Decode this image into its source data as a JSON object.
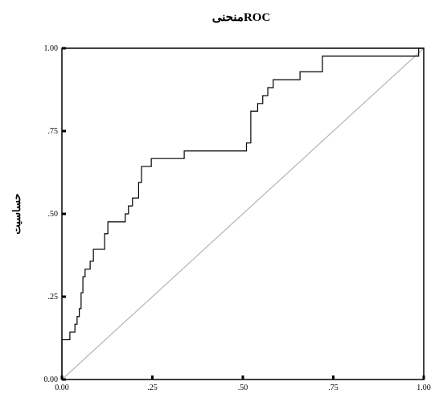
{
  "chart_data": {
    "type": "line",
    "title": "منحنیROC",
    "ylabel": "حساسیت",
    "xlabel": "",
    "xlim": [
      0,
      1
    ],
    "ylim": [
      0,
      1
    ],
    "x_ticks": [
      "0.00",
      ".25",
      ".50",
      ".75",
      "1.00"
    ],
    "y_ticks": [
      "0.00",
      ".25",
      ".50",
      ".75",
      "1.00"
    ],
    "x_tick_values": [
      0,
      0.25,
      0.5,
      0.75,
      1
    ],
    "y_tick_values": [
      0,
      0.25,
      0.5,
      0.75,
      1
    ],
    "grid": false,
    "colors": {
      "curve": "#000000",
      "reference": "#b4b4b4",
      "frame": "#000000"
    },
    "series": [
      {
        "values": [
          [
            0.0,
            0.0
          ],
          [
            0.0,
            0.12
          ],
          [
            0.022,
            0.12
          ],
          [
            0.022,
            0.143
          ],
          [
            0.036,
            0.143
          ],
          [
            0.036,
            0.167
          ],
          [
            0.042,
            0.167
          ],
          [
            0.042,
            0.19
          ],
          [
            0.048,
            0.19
          ],
          [
            0.048,
            0.214
          ],
          [
            0.053,
            0.214
          ],
          [
            0.053,
            0.262
          ],
          [
            0.058,
            0.262
          ],
          [
            0.058,
            0.31
          ],
          [
            0.064,
            0.31
          ],
          [
            0.064,
            0.333
          ],
          [
            0.078,
            0.333
          ],
          [
            0.078,
            0.357
          ],
          [
            0.087,
            0.357
          ],
          [
            0.087,
            0.393
          ],
          [
            0.118,
            0.393
          ],
          [
            0.118,
            0.44
          ],
          [
            0.127,
            0.44
          ],
          [
            0.127,
            0.476
          ],
          [
            0.175,
            0.476
          ],
          [
            0.175,
            0.5
          ],
          [
            0.184,
            0.5
          ],
          [
            0.184,
            0.524
          ],
          [
            0.195,
            0.524
          ],
          [
            0.195,
            0.548
          ],
          [
            0.212,
            0.548
          ],
          [
            0.212,
            0.595
          ],
          [
            0.22,
            0.595
          ],
          [
            0.22,
            0.643
          ],
          [
            0.247,
            0.643
          ],
          [
            0.247,
            0.667
          ],
          [
            0.338,
            0.667
          ],
          [
            0.338,
            0.69
          ],
          [
            0.51,
            0.69
          ],
          [
            0.51,
            0.714
          ],
          [
            0.522,
            0.714
          ],
          [
            0.522,
            0.81
          ],
          [
            0.541,
            0.81
          ],
          [
            0.541,
            0.833
          ],
          [
            0.555,
            0.833
          ],
          [
            0.555,
            0.857
          ],
          [
            0.569,
            0.857
          ],
          [
            0.569,
            0.881
          ],
          [
            0.584,
            0.881
          ],
          [
            0.584,
            0.905
          ],
          [
            0.658,
            0.905
          ],
          [
            0.658,
            0.929
          ],
          [
            0.72,
            0.929
          ],
          [
            0.72,
            0.976
          ],
          [
            0.986,
            0.976
          ],
          [
            0.986,
            1.0
          ],
          [
            1.0,
            1.0
          ]
        ]
      },
      {
        "values": [
          [
            0,
            0
          ],
          [
            1,
            1
          ]
        ]
      }
    ]
  }
}
